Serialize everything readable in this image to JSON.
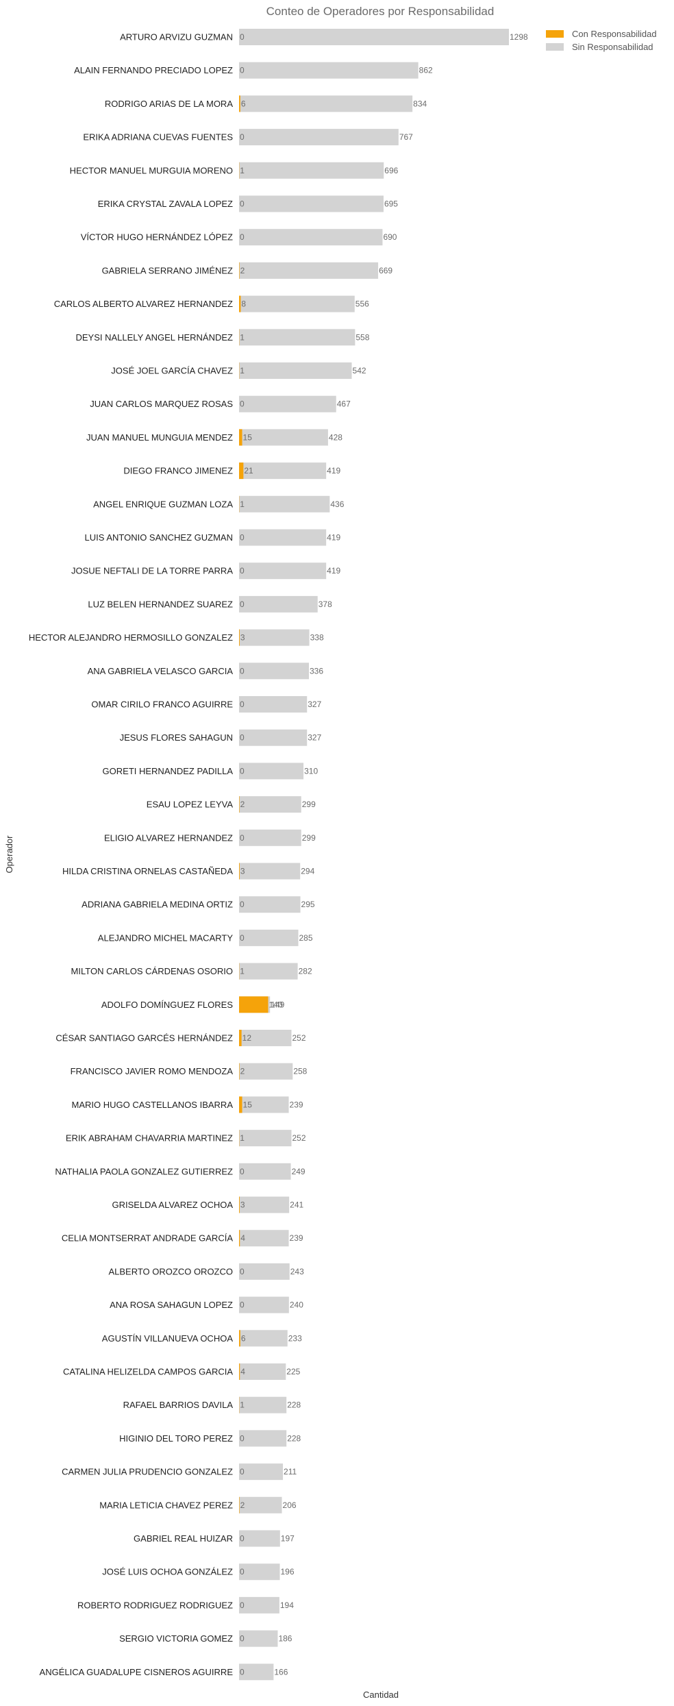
{
  "chart_data": {
    "type": "bar",
    "orientation": "horizontal",
    "title": "Conteo de Operadores por Responsabilidad",
    "xlabel": "Cantidad",
    "ylabel": "Operador",
    "xlim": [
      0,
      1298
    ],
    "grid": false,
    "legend_position": "top-right",
    "colors": {
      "Con Responsabilidad": "#f5a30a",
      "Sin Responsabilidad": "#d3d3d3"
    },
    "categories": [
      "ARTURO ARVIZU GUZMAN",
      "ALAIN FERNANDO PRECIADO LOPEZ",
      "RODRIGO ARIAS DE LA MORA",
      "ERIKA ADRIANA CUEVAS FUENTES",
      "HECTOR MANUEL MURGUIA MORENO",
      "ERIKA CRYSTAL ZAVALA LOPEZ",
      "VÍCTOR HUGO HERNÁNDEZ LÓPEZ",
      "GABRIELA SERRANO JIMÉNEZ",
      "CARLOS ALBERTO ALVAREZ HERNANDEZ",
      "DEYSI NALLELY ANGEL HERNÁNDEZ",
      "JOSÉ JOEL GARCÍA CHAVEZ",
      "JUAN CARLOS MARQUEZ ROSAS",
      "JUAN MANUEL MUNGUIA MENDEZ",
      "DIEGO FRANCO JIMENEZ",
      "ANGEL ENRIQUE GUZMAN LOZA",
      "LUIS ANTONIO SANCHEZ GUZMAN",
      "JOSUE NEFTALI DE LA TORRE PARRA",
      "LUZ BELEN HERNANDEZ SUAREZ",
      "HECTOR ALEJANDRO HERMOSILLO GONZALEZ",
      "ANA GABRIELA VELASCO GARCIA",
      "OMAR CIRILO FRANCO AGUIRRE",
      "JESUS FLORES SAHAGUN",
      "GORETI HERNANDEZ PADILLA",
      "ESAU LOPEZ LEYVA",
      "ELIGIO ALVAREZ HERNANDEZ",
      "HILDA CRISTINA ORNELAS CASTAÑEDA",
      "ADRIANA GABRIELA MEDINA ORTIZ",
      "ALEJANDRO MICHEL MACARTY",
      "MILTON CARLOS CÁRDENAS OSORIO",
      "ADOLFO DOMÍNGUEZ FLORES",
      "CÉSAR SANTIAGO GARCÉS HERNÁNDEZ",
      "FRANCISCO JAVIER ROMO MENDOZA",
      "MARIO HUGO CASTELLANOS IBARRA",
      "ERIK ABRAHAM CHAVARRIA MARTINEZ",
      "NATHALIA PAOLA GONZALEZ GUTIERREZ",
      "GRISELDA ALVAREZ OCHOA",
      "CELIA MONTSERRAT ANDRADE GARCÍA",
      "ALBERTO OROZCO OROZCO",
      "ANA ROSA SAHAGUN LOPEZ",
      "AGUSTÍN VILLANUEVA OCHOA",
      "CATALINA HELIZELDA CAMPOS GARCIA",
      "RAFAEL BARRIOS DAVILA",
      "HIGINIO DEL TORO PEREZ",
      "CARMEN JULIA PRUDENCIO GONZALEZ",
      "MARIA LETICIA CHAVEZ PEREZ",
      "GABRIEL REAL HUIZAR",
      "JOSÉ LUIS OCHOA GONZÁLEZ",
      "ROBERTO RODRIGUEZ RODRIGUEZ",
      "SERGIO VICTORIA GOMEZ",
      "ANGÉLICA GUADALUPE CISNEROS AGUIRRE"
    ],
    "series": [
      {
        "name": "Sin Responsabilidad",
        "values": [
          1298,
          862,
          834,
          767,
          696,
          695,
          690,
          669,
          556,
          558,
          542,
          467,
          428,
          419,
          436,
          419,
          419,
          378,
          338,
          336,
          327,
          327,
          310,
          299,
          299,
          294,
          295,
          285,
          282,
          149,
          252,
          258,
          239,
          252,
          249,
          241,
          239,
          243,
          240,
          233,
          225,
          228,
          228,
          211,
          206,
          197,
          196,
          194,
          186,
          166
        ]
      },
      {
        "name": "Con Responsabilidad",
        "values": [
          0,
          0,
          6,
          0,
          1,
          0,
          0,
          2,
          8,
          1,
          1,
          0,
          15,
          21,
          1,
          0,
          0,
          0,
          3,
          0,
          0,
          0,
          0,
          2,
          0,
          3,
          0,
          0,
          1,
          140,
          12,
          2,
          15,
          1,
          0,
          3,
          4,
          0,
          0,
          6,
          4,
          1,
          0,
          0,
          2,
          0,
          0,
          0,
          0,
          0
        ]
      }
    ]
  }
}
